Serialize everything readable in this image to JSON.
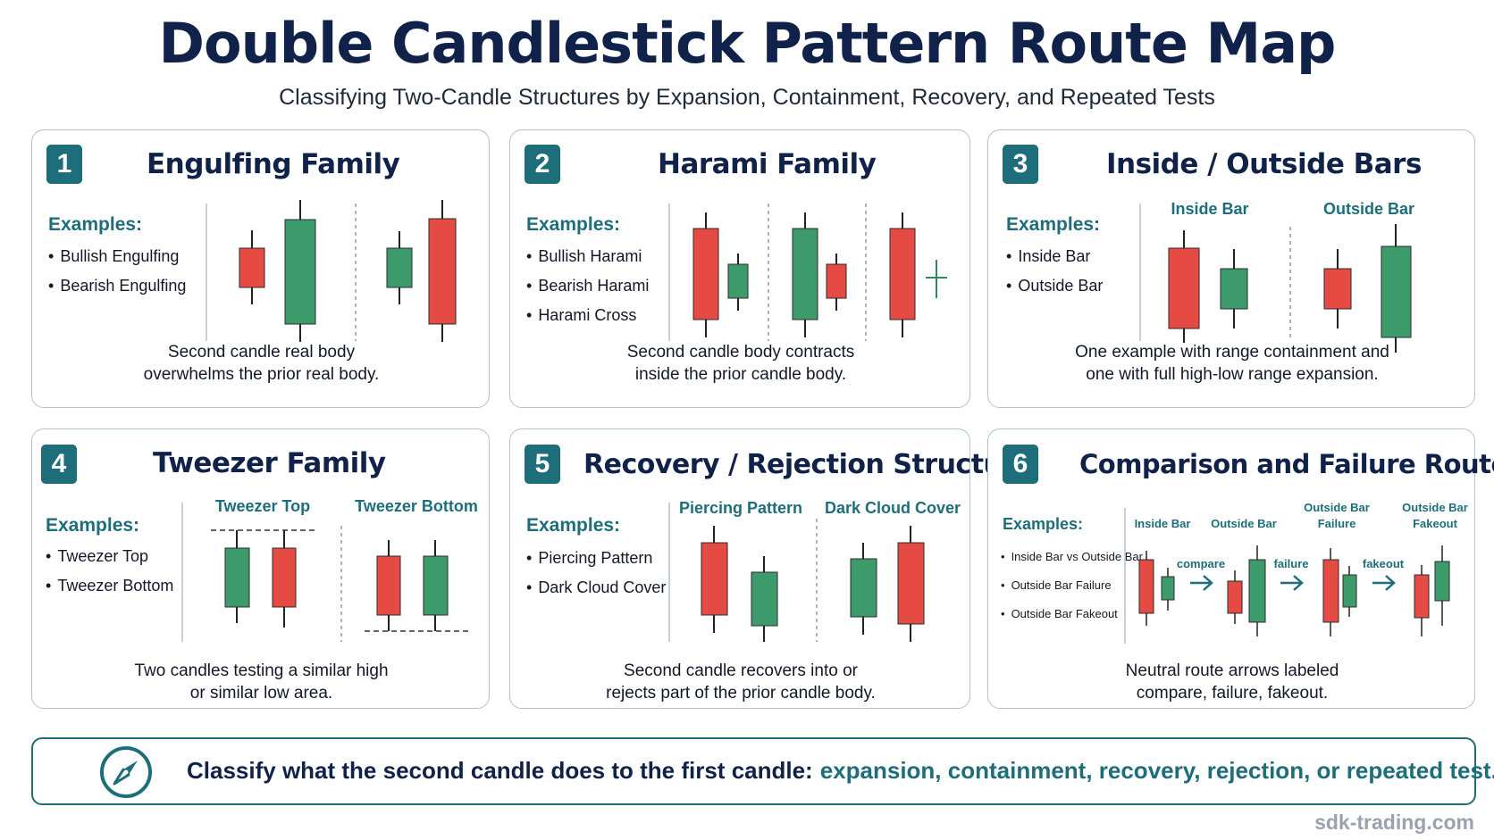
{
  "title": "Double Candlestick Pattern Route Map",
  "subtitle": "Classifying Two-Candle Structures by Expansion, Containment, Recovery, and Repeated Tests",
  "colors": {
    "bull": "#3c9a6b",
    "bear": "#e54a43",
    "accent": "#1d6e7a",
    "heading": "#10224a"
  },
  "panels": [
    {
      "number": "1",
      "title": "Engulfing Family",
      "examples_label": "Examples:",
      "examples": [
        "Bullish Engulfing",
        "Bearish Engulfing"
      ],
      "caption": [
        "Second candle real body",
        "overwhelms the prior real body."
      ]
    },
    {
      "number": "2",
      "title": "Harami Family",
      "examples_label": "Examples:",
      "examples": [
        "Bullish Harami",
        "Bearish Harami",
        "Harami Cross"
      ],
      "caption": [
        "Second candle body contracts",
        "inside the prior candle body."
      ]
    },
    {
      "number": "3",
      "title": "Inside / Outside Bars",
      "examples_label": "Examples:",
      "examples": [
        "Inside Bar",
        "Outside Bar"
      ],
      "sublabels": [
        "Inside Bar",
        "Outside Bar"
      ],
      "caption": [
        "One example with range containment and",
        "one with full high-low range expansion."
      ]
    },
    {
      "number": "4",
      "title": "Tweezer Family",
      "examples_label": "Examples:",
      "examples": [
        "Tweezer Top",
        "Tweezer Bottom"
      ],
      "sublabels": [
        "Tweezer Top",
        "Tweezer Bottom"
      ],
      "caption": [
        "Two candles testing a similar high",
        "or similar low area."
      ]
    },
    {
      "number": "5",
      "title": "Recovery / Rejection Structures",
      "examples_label": "Examples:",
      "examples": [
        "Piercing Pattern",
        "Dark Cloud Cover"
      ],
      "sublabels": [
        "Piercing Pattern",
        "Dark Cloud Cover"
      ],
      "caption": [
        "Second candle recovers into or",
        "rejects part of the prior candle body."
      ]
    },
    {
      "number": "6",
      "title": "Comparison and Failure Routes",
      "examples_label": "Examples:",
      "examples": [
        "Inside Bar vs Outside Bar",
        "Outside Bar Failure",
        "Outside Bar Fakeout"
      ],
      "sublabels": [
        "Inside Bar",
        "Outside Bar",
        "Outside Bar",
        "Failure",
        "Outside Bar",
        "Fakeout"
      ],
      "arrows": [
        "compare",
        "failure",
        "fakeout"
      ],
      "caption": [
        "Neutral route arrows labeled",
        "compare, failure, fakeout."
      ]
    }
  ],
  "bottom": {
    "text": "Classify what the second candle does to the first candle:",
    "accent": "expansion, containment, recovery, rejection, or repeated test.",
    "icon": "compass-icon"
  },
  "footer": "sdk-trading.com"
}
